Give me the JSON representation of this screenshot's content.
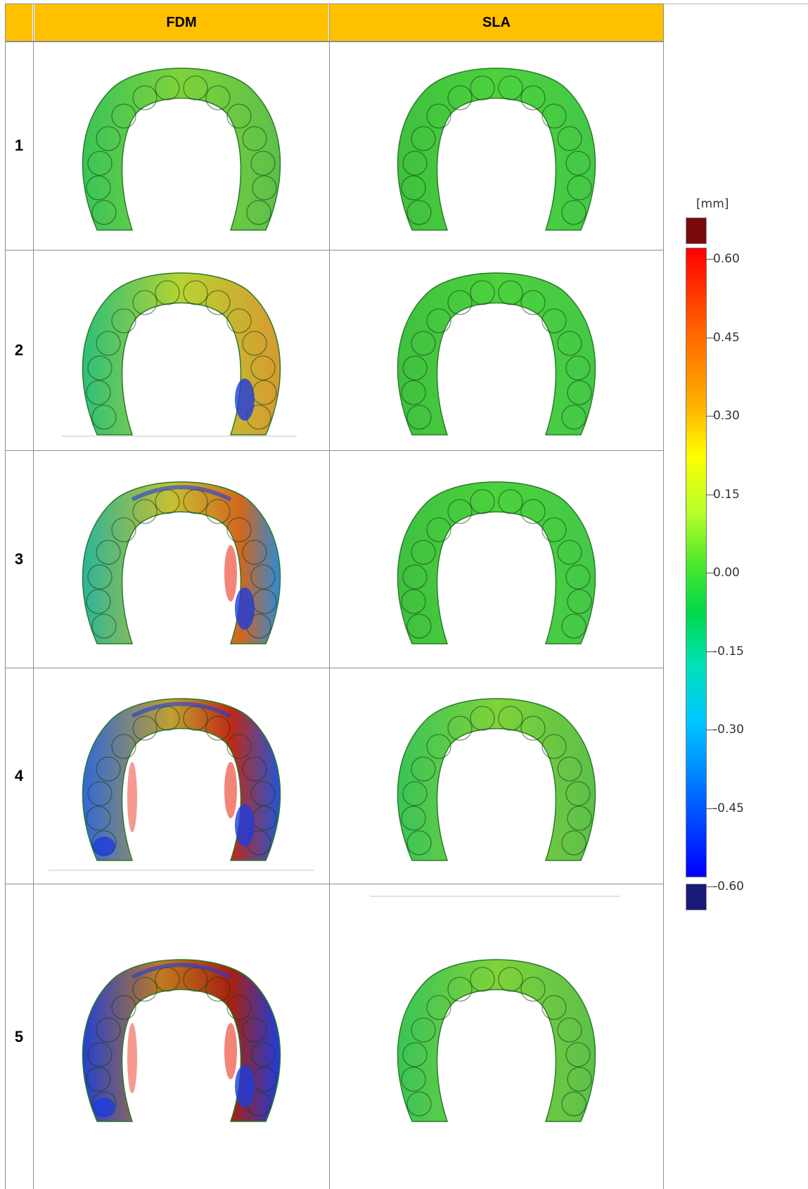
{
  "table": {
    "corner": "",
    "columns": [
      "FDM",
      "SLA"
    ],
    "header_color": "#ffc000",
    "rows": [
      {
        "label": "1",
        "fdm": {
          "deviation_level": 1
        },
        "sla": {
          "deviation_level": 0
        }
      },
      {
        "label": "2",
        "fdm": {
          "deviation_level": 2
        },
        "sla": {
          "deviation_level": 0
        }
      },
      {
        "label": "3",
        "fdm": {
          "deviation_level": 3
        },
        "sla": {
          "deviation_level": 0
        }
      },
      {
        "label": "4",
        "fdm": {
          "deviation_level": 4
        },
        "sla": {
          "deviation_level": 1
        }
      },
      {
        "label": "5",
        "fdm": {
          "deviation_level": 5
        },
        "sla": {
          "deviation_level": 1
        }
      }
    ]
  },
  "color_scale": {
    "unit": "[mm]",
    "ticks": [
      "0.60",
      "0.45",
      "0.30",
      "0.15",
      "0.00",
      "-0.15",
      "-0.30",
      "-0.45",
      "-0.60"
    ],
    "over_color": "#7a0a0a",
    "under_color": "#1a1a78",
    "colors": {
      "red": "#e8200a",
      "orange": "#f08a14",
      "yellow": "#e6e632",
      "green": "#3cc83c",
      "cyan": "#2ad2dc",
      "blue": "#1e3cdc"
    }
  }
}
